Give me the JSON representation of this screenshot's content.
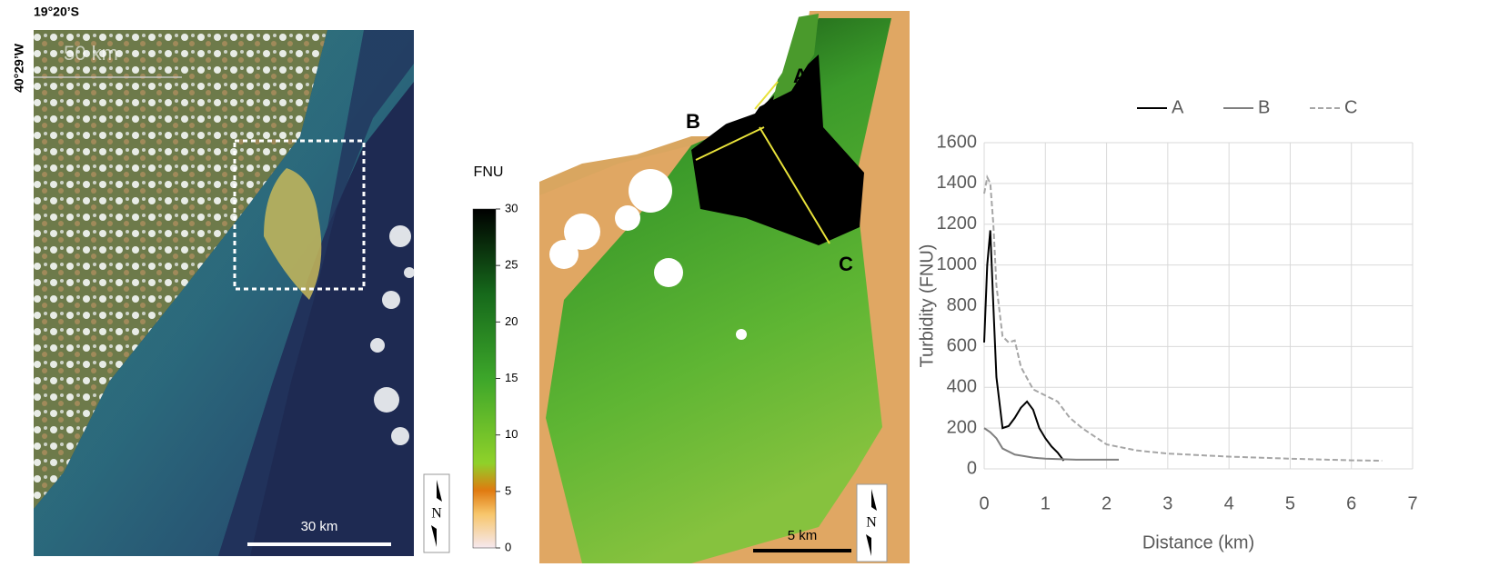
{
  "left_map": {
    "latitude": "19°20’S",
    "longitude": "40°29’W",
    "faint_scale": "50 km",
    "scale": "30 km",
    "north": "N"
  },
  "colorbar": {
    "title": "FNU",
    "lim": [
      0,
      30
    ],
    "ticks": [
      0,
      5,
      10,
      15,
      20,
      25,
      30
    ]
  },
  "middle_map": {
    "transects": [
      "A",
      "B",
      "C"
    ],
    "scale": "5 km",
    "north": "N"
  },
  "chart_data": {
    "type": "line",
    "ylabel": "Turbidity (FNU)",
    "xlabel": "Distance (km)",
    "xlim": [
      0,
      7
    ],
    "xticks": [
      0,
      1,
      2,
      3,
      4,
      5,
      6,
      7
    ],
    "ylim": [
      0,
      1600
    ],
    "yticks": [
      0,
      200,
      400,
      600,
      800,
      1000,
      1200,
      1400,
      1600
    ],
    "grid": true,
    "legend": "top",
    "series": [
      {
        "name": "A",
        "color": "#000000",
        "dash": "solid",
        "x": [
          0,
          0.05,
          0.1,
          0.15,
          0.2,
          0.3,
          0.4,
          0.5,
          0.6,
          0.7,
          0.8,
          0.9,
          1.0,
          1.1,
          1.2,
          1.3
        ],
        "values": [
          620,
          1000,
          1170,
          800,
          450,
          200,
          210,
          250,
          300,
          330,
          290,
          200,
          150,
          110,
          80,
          40
        ]
      },
      {
        "name": "B",
        "color": "#7f7f7f",
        "dash": "solid",
        "x": [
          0,
          0.1,
          0.2,
          0.3,
          0.5,
          0.8,
          1.0,
          1.5,
          2.2
        ],
        "values": [
          200,
          180,
          150,
          100,
          70,
          55,
          50,
          45,
          45
        ]
      },
      {
        "name": "C",
        "color": "#a6a6a6",
        "dash": "dashed",
        "x": [
          0,
          0.05,
          0.1,
          0.15,
          0.2,
          0.3,
          0.4,
          0.5,
          0.6,
          0.8,
          1.0,
          1.2,
          1.4,
          1.6,
          2.0,
          2.5,
          3,
          4,
          5,
          6,
          6.5
        ],
        "values": [
          1350,
          1430,
          1400,
          1200,
          900,
          650,
          620,
          630,
          500,
          390,
          360,
          330,
          250,
          200,
          120,
          90,
          75,
          60,
          50,
          42,
          40
        ]
      }
    ]
  }
}
